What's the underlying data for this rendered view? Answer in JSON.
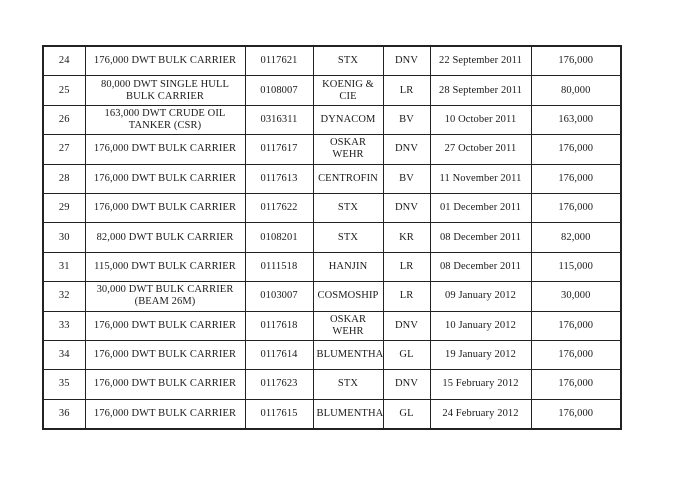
{
  "table": {
    "columns": [
      "no",
      "description",
      "hull_no",
      "owner",
      "class",
      "date",
      "dwt"
    ],
    "rows": [
      {
        "no": "24",
        "description": "176,000 DWT BULK CARRIER",
        "hull_no": "0117621",
        "owner": "STX",
        "class": "DNV",
        "date": "22 September 2011",
        "dwt": "176,000"
      },
      {
        "no": "25",
        "description": "80,000 DWT SINGLE HULL BULK CARRIER",
        "hull_no": "0108007",
        "owner": "KOENIG & CIE",
        "class": "LR",
        "date": "28 September 2011",
        "dwt": "80,000"
      },
      {
        "no": "26",
        "description": "163,000 DWT CRUDE OIL TANKER (CSR)",
        "hull_no": "0316311",
        "owner": "DYNACOM",
        "class": "BV",
        "date": "10 October 2011",
        "dwt": "163,000"
      },
      {
        "no": "27",
        "description": "176,000 DWT BULK CARRIER",
        "hull_no": "0117617",
        "owner": "OSKAR WEHR",
        "class": "DNV",
        "date": "27 October 2011",
        "dwt": "176,000"
      },
      {
        "no": "28",
        "description": "176,000 DWT BULK CARRIER",
        "hull_no": "0117613",
        "owner": "CENTROFIN",
        "class": "BV",
        "date": "11 November 2011",
        "dwt": "176,000"
      },
      {
        "no": "29",
        "description": "176,000 DWT BULK CARRIER",
        "hull_no": "0117622",
        "owner": "STX",
        "class": "DNV",
        "date": "01 December 2011",
        "dwt": "176,000"
      },
      {
        "no": "30",
        "description": "82,000 DWT BULK CARRIER",
        "hull_no": "0108201",
        "owner": "STX",
        "class": "KR",
        "date": "08 December 2011",
        "dwt": "82,000"
      },
      {
        "no": "31",
        "description": "115,000 DWT BULK CARRIER",
        "hull_no": "0111518",
        "owner": "HANJIN",
        "class": "LR",
        "date": "08 December 2011",
        "dwt": "115,000"
      },
      {
        "no": "32",
        "description": "30,000 DWT BULK CARRIER (BEAM 26M)",
        "hull_no": "0103007",
        "owner": "COSMOSHIP",
        "class": "LR",
        "date": "09 January 2012",
        "dwt": "30,000"
      },
      {
        "no": "33",
        "description": "176,000 DWT BULK CARRIER",
        "hull_no": "0117618",
        "owner": "OSKAR WEHR",
        "class": "DNV",
        "date": "10 January 2012",
        "dwt": "176,000"
      },
      {
        "no": "34",
        "description": "176,000 DWT BULK CARRIER",
        "hull_no": "0117614",
        "owner": "BLUMENTHAL",
        "class": "GL",
        "date": "19 January 2012",
        "dwt": "176,000"
      },
      {
        "no": "35",
        "description": "176,000 DWT BULK CARRIER",
        "hull_no": "0117623",
        "owner": "STX",
        "class": "DNV",
        "date": "15 February 2012",
        "dwt": "176,000"
      },
      {
        "no": "36",
        "description": "176,000 DWT BULK CARRIER",
        "hull_no": "0117615",
        "owner": "BLUMENTHAL",
        "class": "GL",
        "date": "24 February 2012",
        "dwt": "176,000"
      }
    ]
  }
}
